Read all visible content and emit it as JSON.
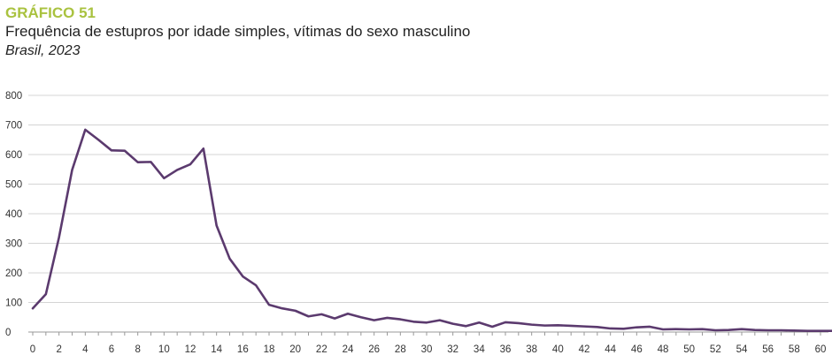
{
  "header": {
    "label": "GRÁFICO 51",
    "title": "Frequência de estupros por idade simples, vítimas do sexo masculino",
    "subtitle": "Brasil, 2023"
  },
  "colors": {
    "label": "#a9c23f",
    "line": "#5b3a6e",
    "grid": "#d4d4d4",
    "axis": "#999999"
  },
  "chart_data": {
    "type": "line",
    "title": "Frequência de estupros por idade simples, vítimas do sexo masculino",
    "subtitle": "Brasil, 2023",
    "xlabel": "",
    "ylabel": "",
    "xlim": [
      0,
      61
    ],
    "ylim": [
      0,
      800
    ],
    "yticks": [
      0,
      100,
      200,
      300,
      400,
      500,
      600,
      700,
      800
    ],
    "xticks": [
      0,
      2,
      4,
      6,
      8,
      10,
      12,
      14,
      16,
      18,
      20,
      22,
      24,
      26,
      28,
      30,
      32,
      34,
      36,
      38,
      40,
      42,
      44,
      46,
      48,
      50,
      52,
      54,
      56,
      58,
      60
    ],
    "grid": true,
    "legend": "none",
    "series": [
      {
        "x": [
          0,
          1,
          2,
          3,
          4,
          5,
          6,
          7,
          8,
          9,
          10,
          11,
          12,
          13,
          14,
          15,
          16,
          17,
          18,
          19,
          20,
          21,
          22,
          23,
          24,
          25,
          26,
          27,
          28,
          29,
          30,
          31,
          32,
          33,
          34,
          35,
          36,
          37,
          38,
          39,
          40,
          41,
          42,
          43,
          44,
          45,
          46,
          47,
          48,
          49,
          50,
          51,
          52,
          53,
          54,
          55,
          56,
          57,
          58,
          59,
          60,
          61
        ],
        "values": [
          80,
          128,
          320,
          548,
          684,
          650,
          614,
          613,
          574,
          575,
          520,
          548,
          567,
          620,
          360,
          248,
          188,
          158,
          92,
          80,
          72,
          53,
          60,
          46,
          62,
          50,
          40,
          48,
          43,
          35,
          32,
          40,
          28,
          20,
          32,
          18,
          33,
          30,
          25,
          22,
          23,
          21,
          19,
          17,
          12,
          11,
          16,
          18,
          9,
          10,
          9,
          10,
          6,
          7,
          10,
          7,
          6,
          6,
          5,
          4,
          4,
          4
        ]
      }
    ]
  }
}
